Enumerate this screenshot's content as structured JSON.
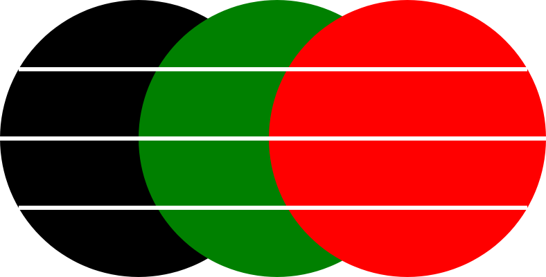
{
  "background": "#ffffff",
  "circles": [
    {
      "name": "black-circle",
      "color": "#000000"
    },
    {
      "name": "green-circle",
      "color": "#008000"
    },
    {
      "name": "red-circle",
      "color": "#ff0000"
    }
  ],
  "stripe_color": "#ffffff",
  "stripe_count": 3
}
